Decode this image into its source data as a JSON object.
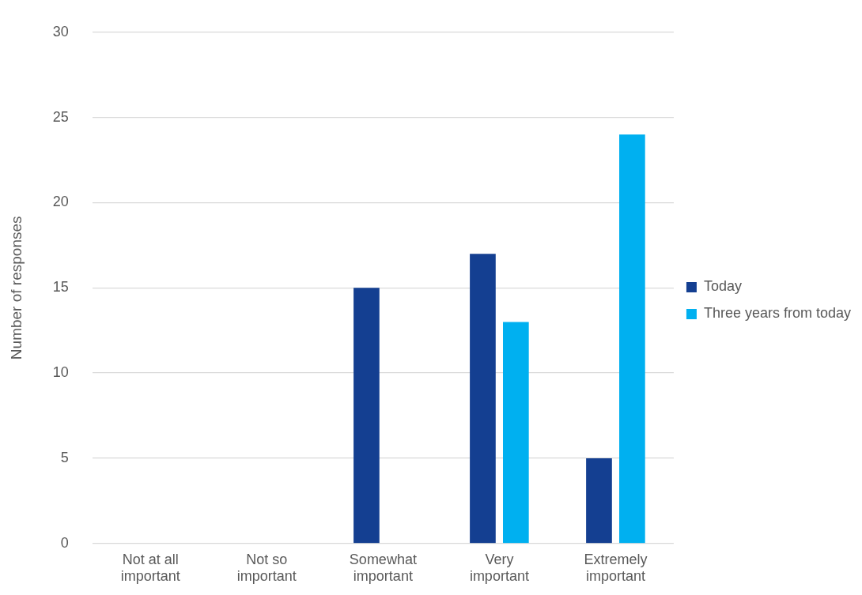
{
  "chart_data": {
    "type": "bar",
    "ylabel": "Number of responses",
    "categories": [
      "Not at all\nimportant",
      "Not so\nimportant",
      "Somewhat\nimportant",
      "Very\nimportant",
      "Extremely\nimportant"
    ],
    "series": [
      {
        "name": "Today",
        "color": "#143f91",
        "values": [
          0,
          0,
          15,
          17,
          5
        ]
      },
      {
        "name": "Three years from today",
        "color": "#00b0f0",
        "values": [
          0,
          0,
          0,
          13,
          24
        ]
      }
    ],
    "ylim": [
      0,
      30
    ],
    "yticks": [
      0,
      5,
      10,
      15,
      20,
      25,
      30
    ],
    "grid": "y",
    "legend": "right"
  }
}
